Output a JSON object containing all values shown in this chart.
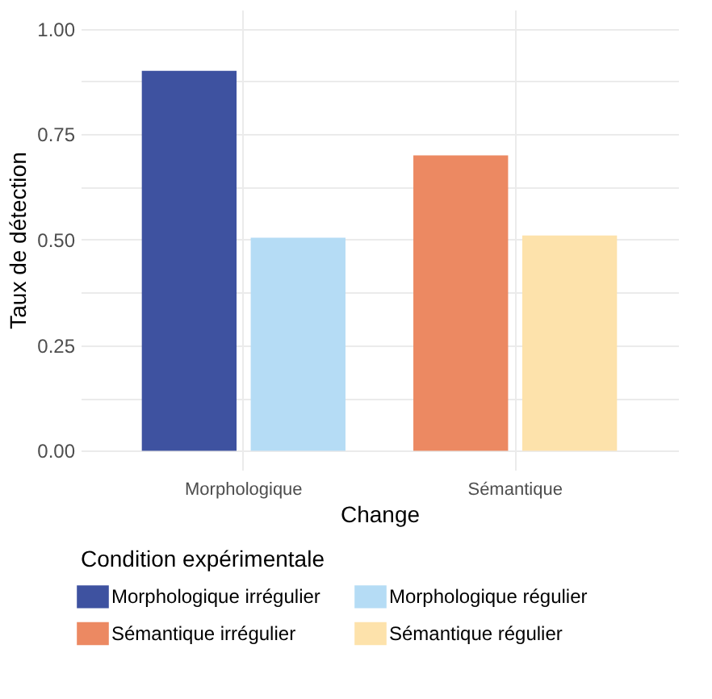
{
  "chart_data": {
    "type": "bar",
    "xlabel": "Change",
    "ylabel": "Taux de détection",
    "legend_title": "Condition expérimentale",
    "categories": [
      "Morphologique",
      "Sémantique"
    ],
    "series": [
      {
        "name": "Morphologique irrégulier",
        "color": "#3e52a0",
        "values": [
          0.9,
          null
        ]
      },
      {
        "name": "Morphologique régulier",
        "color": "#b5dcf5",
        "values": [
          0.505,
          null
        ]
      },
      {
        "name": "Sémantique irrégulier",
        "color": "#ec8962",
        "values": [
          null,
          0.7
        ]
      },
      {
        "name": "Sémantique régulier",
        "color": "#fde2ab",
        "values": [
          null,
          0.51
        ]
      }
    ],
    "ylim": [
      -0.045,
      1.045
    ],
    "yticks": [
      {
        "value": 0,
        "label": "0.00"
      },
      {
        "value": 0.125,
        "label": null
      },
      {
        "value": 0.25,
        "label": "0.25"
      },
      {
        "value": 0.375,
        "label": null
      },
      {
        "value": 0.5,
        "label": "0.50"
      },
      {
        "value": 0.625,
        "label": null
      },
      {
        "value": 0.75,
        "label": "0.75"
      },
      {
        "value": 0.875,
        "label": null
      },
      {
        "value": 1,
        "label": "1.00"
      }
    ],
    "grid": true,
    "legend": "bottom"
  }
}
